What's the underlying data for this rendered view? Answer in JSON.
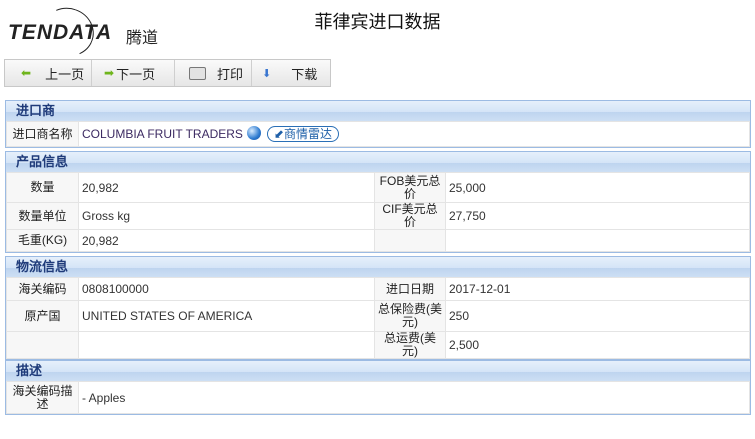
{
  "header": {
    "logo_text": "TENDATA",
    "logo_cn": "腾道",
    "title": "菲律宾进口数据"
  },
  "toolbar": {
    "prev": "上一页",
    "next": "下一页",
    "print": "打印",
    "download": "下载"
  },
  "importer": {
    "section": "进口商",
    "name_label": "进口商名称",
    "name": "COLUMBIA FRUIT TRADERS",
    "radar": "商情雷达"
  },
  "product": {
    "section": "产品信息",
    "qty_label": "数量",
    "qty": "20,982",
    "fob_label": "FOB美元总价",
    "fob": "25,000",
    "unit_label": "数量单位",
    "unit": "Gross kg",
    "cif_label": "CIF美元总价",
    "cif": "27,750",
    "weight_label": "毛重(KG)",
    "weight": "20,982"
  },
  "logistics": {
    "section": "物流信息",
    "hs_label": "海关编码",
    "hs": "0808100000",
    "date_label": "进口日期",
    "date": "2017-12-01",
    "origin_label": "原产国",
    "origin": "UNITED STATES OF AMERICA",
    "insurance_label": "总保险费(美元)",
    "insurance": "250",
    "freight_label": "总运费(美元)",
    "freight": "2,500"
  },
  "description": {
    "section": "描述",
    "hs_desc_label": "海关编码描述",
    "hs_desc": "- Apples"
  }
}
